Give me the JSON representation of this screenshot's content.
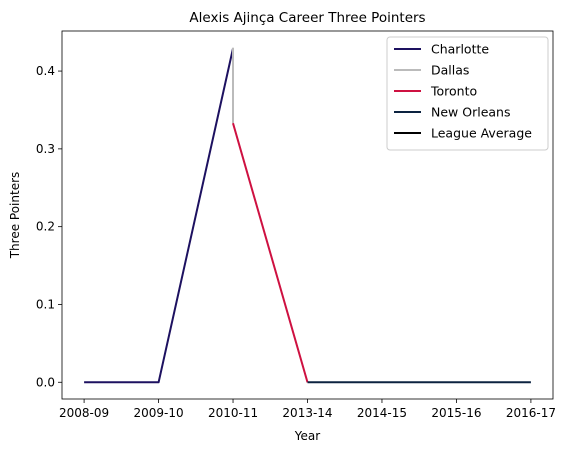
{
  "chart_data": {
    "type": "line",
    "title": "Alexis Ajinça Career Three Pointers",
    "xlabel": "Year",
    "ylabel": "Three Pointers",
    "categories": [
      "2008-09",
      "2009-10",
      "2010-11",
      "2013-14",
      "2014-15",
      "2015-16",
      "2016-17"
    ],
    "yticks": [
      0.0,
      0.1,
      0.2,
      0.3,
      0.4
    ],
    "ylim": [
      -0.0215,
      0.4515
    ],
    "grid": false,
    "legend_position": "top-right",
    "series": [
      {
        "name": "Charlotte",
        "color": "#1d1160",
        "points": [
          [
            "2008-09",
            0.0
          ],
          [
            "2009-10",
            0.0
          ],
          [
            "2010-11",
            0.429
          ]
        ]
      },
      {
        "name": "Dallas",
        "color": "#bbbbbb",
        "points": [
          [
            "2010-11",
            0.43
          ],
          [
            "2010-11",
            0.333
          ]
        ]
      },
      {
        "name": "Toronto",
        "color": "#ce1141",
        "points": [
          [
            "2010-11",
            0.333
          ],
          [
            "2013-14",
            0.0
          ]
        ]
      },
      {
        "name": "New Orleans",
        "color": "#0c2340",
        "points": [
          [
            "2013-14",
            0.0
          ],
          [
            "2014-15",
            0.0
          ],
          [
            "2015-16",
            0.0
          ],
          [
            "2016-17",
            0.0
          ]
        ]
      },
      {
        "name": "League Average",
        "color": "#000000",
        "points": []
      }
    ]
  }
}
